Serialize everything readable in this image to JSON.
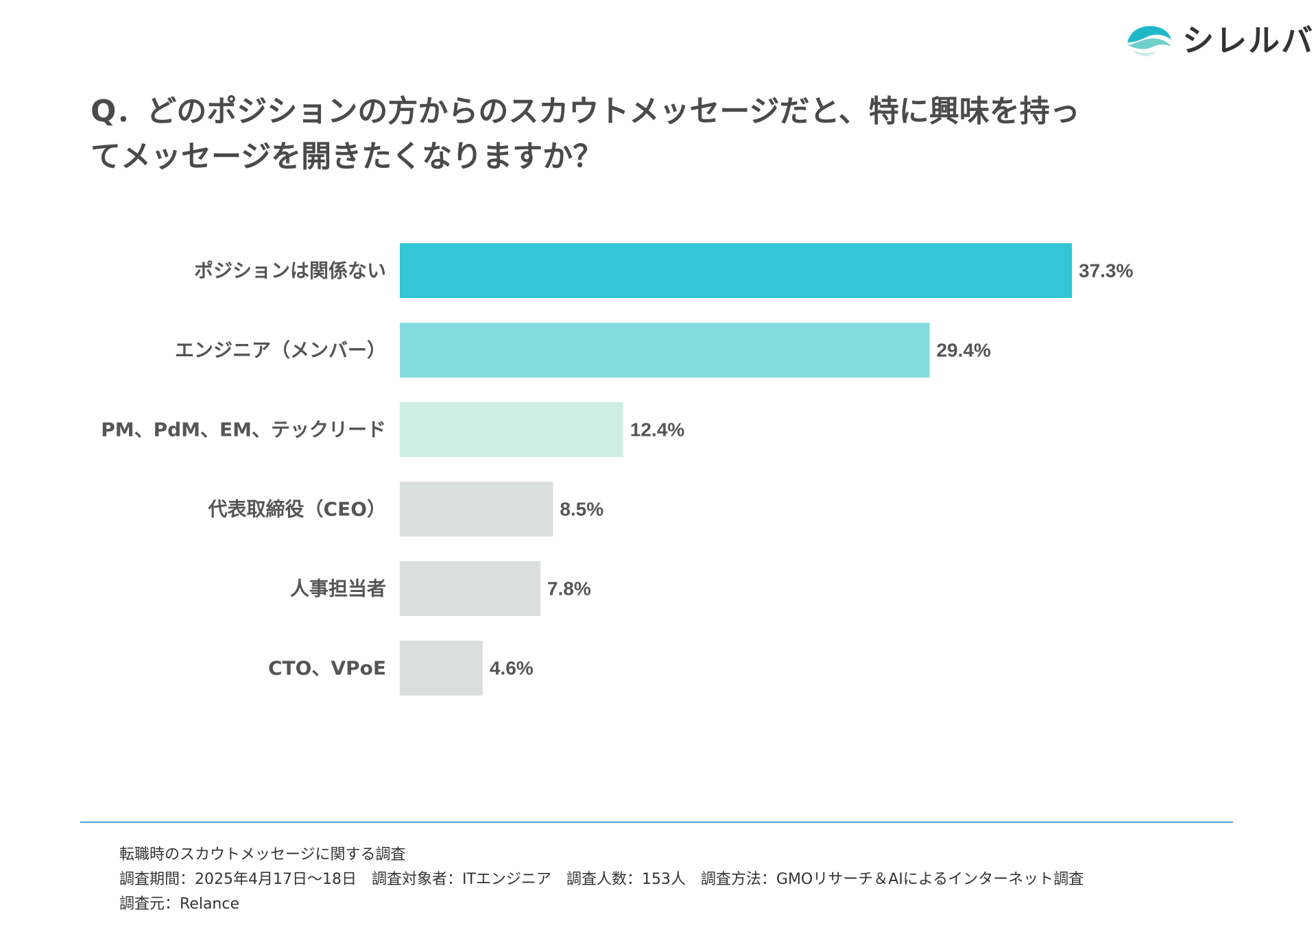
{
  "brand": {
    "name": "シレルバ",
    "colors": {
      "dark": "#1fb8c9",
      "mid": "#2fc3c9",
      "light": "#c7ece3"
    }
  },
  "title": {
    "line1": "Q．どのポジションの方からのスカウトメッセージだと、特に興味を持っ",
    "line2": "てメッセージを開きたくなりますか？"
  },
  "chart_data": {
    "type": "bar",
    "orientation": "horizontal",
    "categories": [
      "ポジションは関係ない",
      "エンジニア（メンバー）",
      "PM、PdM、EM、テックリード",
      "代表取締役（CEO）",
      "人事担当者",
      "CTO、VPoE"
    ],
    "values": [
      37.3,
      29.4,
      12.4,
      8.5,
      7.8,
      4.6
    ],
    "value_labels": [
      "37.3%",
      "29.4%",
      "12.4%",
      "8.5%",
      "7.8%",
      "4.6%"
    ],
    "colors": [
      "#33c6d5",
      "#82dcdd",
      "#cdeee3",
      "#d9dfdd",
      "#d9dfdd",
      "#d9dfdd"
    ],
    "unit": "%",
    "xlim": [
      0,
      37.3
    ],
    "grid": false,
    "title": "",
    "xlabel": "",
    "ylabel": ""
  },
  "footer": {
    "line1": "転職時のスカウトメッセージに関する調査",
    "line2": "調査期間：2025年4月17日〜18日　調査対象者：ITエンジニア　調査人数：153人　調査方法：GMOリサーチ＆AIによるインターネット調査",
    "line3": "調査元：Relance"
  }
}
